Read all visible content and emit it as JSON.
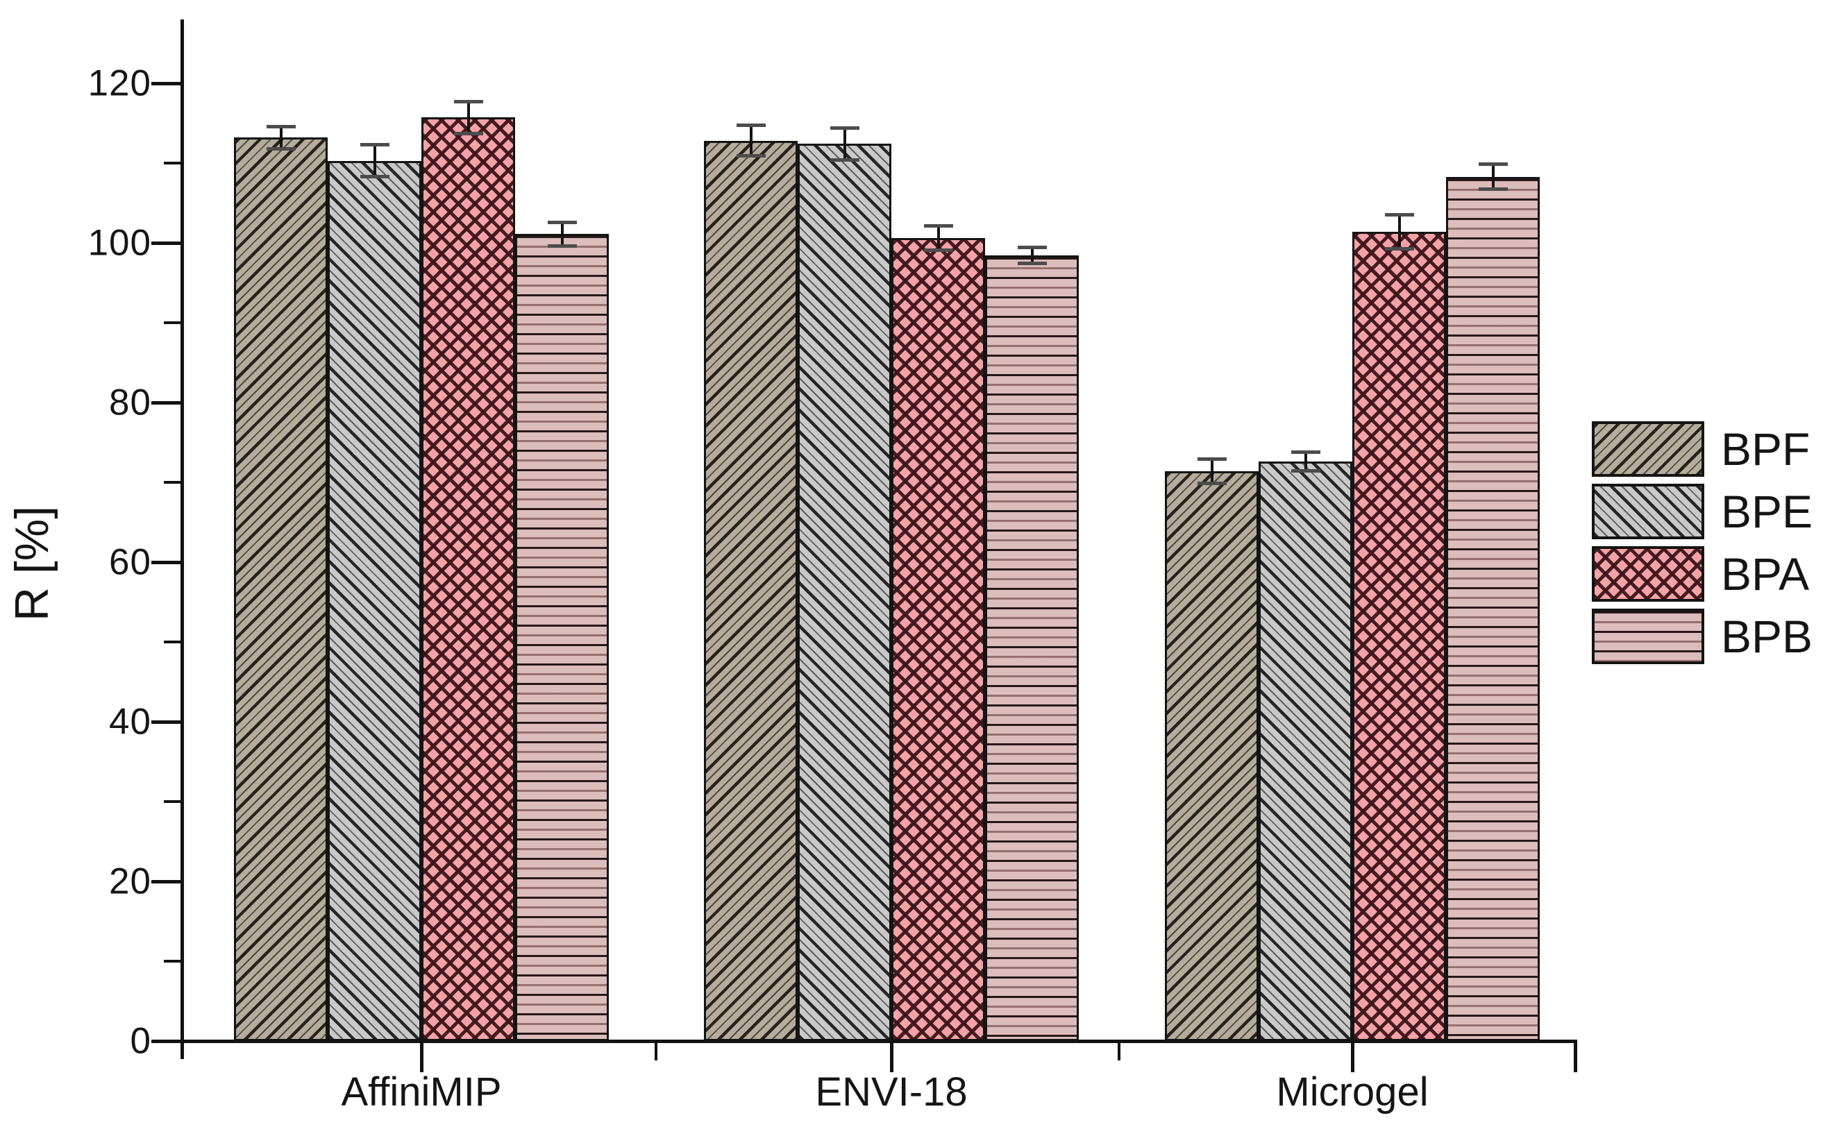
{
  "figure": {
    "background": "#ffffff",
    "y_axis": {
      "title": "R [%]",
      "major_tick_values": [
        0,
        20,
        40,
        60,
        80,
        100,
        120
      ],
      "major_tick_labels": [
        "0",
        "20",
        "40",
        "60",
        "80",
        "100",
        "120"
      ],
      "minor_tick_values": [
        10,
        30,
        50,
        70,
        90,
        110
      ]
    },
    "x_axis": {
      "category_labels": [
        "AffiniMIP",
        "ENVI-18",
        "Microgel"
      ]
    }
  },
  "chart_data": {
    "type": "bar",
    "title": "",
    "xlabel": "",
    "ylabel": "R [%]",
    "ylim": [
      0,
      128
    ],
    "grid": false,
    "legend_position": "right",
    "error_bars": true,
    "categories": [
      "AffiniMIP",
      "ENVI-18",
      "Microgel"
    ],
    "series": [
      {
        "name": "BPF",
        "pattern": "diagonal-up-hatch",
        "fill": "#b5ac9c",
        "hatch_color": "#1c1612",
        "values": [
          113.2,
          112.8,
          71.4
        ],
        "errors": [
          1.4,
          1.9,
          1.5
        ]
      },
      {
        "name": "BPE",
        "pattern": "diagonal-down-hatch",
        "fill": "#c9c9c9",
        "hatch_color": "#18181a",
        "values": [
          110.3,
          112.4,
          72.6
        ],
        "errors": [
          2.0,
          2.0,
          1.2
        ]
      },
      {
        "name": "BPA",
        "pattern": "crosshatch",
        "fill": "#f3a3a6",
        "hatch_color": "#3d151a",
        "values": [
          115.7,
          100.6,
          101.4
        ],
        "errors": [
          2.0,
          1.5,
          2.1
        ]
      },
      {
        "name": "BPB",
        "pattern": "horizontal-lines",
        "fill": "#dcbdbb",
        "hatch_color": "#1e1010",
        "values": [
          101.1,
          98.4,
          108.3
        ],
        "errors": [
          1.5,
          1.0,
          1.6
        ]
      }
    ]
  }
}
